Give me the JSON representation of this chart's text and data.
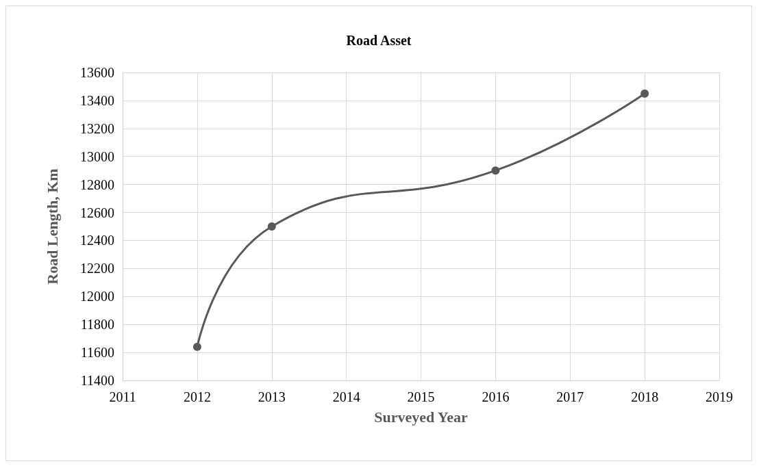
{
  "chart_data": {
    "type": "line",
    "title": "Road Asset",
    "xlabel": "Surveyed Year",
    "ylabel": "Road Length, Km",
    "x": [
      2012,
      2013,
      2016,
      2018
    ],
    "series": [
      {
        "color": "#595959",
        "values": [
          11640,
          12500,
          12900,
          13450
        ]
      }
    ],
    "xlim": [
      2011,
      2019
    ],
    "xticks": [
      2011,
      2012,
      2013,
      2014,
      2015,
      2016,
      2017,
      2018,
      2019
    ],
    "ylim": [
      11400,
      13600
    ],
    "yticks": [
      11400,
      11600,
      11800,
      12000,
      12200,
      12400,
      12600,
      12800,
      13000,
      13200,
      13400,
      13600
    ],
    "grid": true,
    "marker": "circle",
    "line_style": "solid"
  }
}
